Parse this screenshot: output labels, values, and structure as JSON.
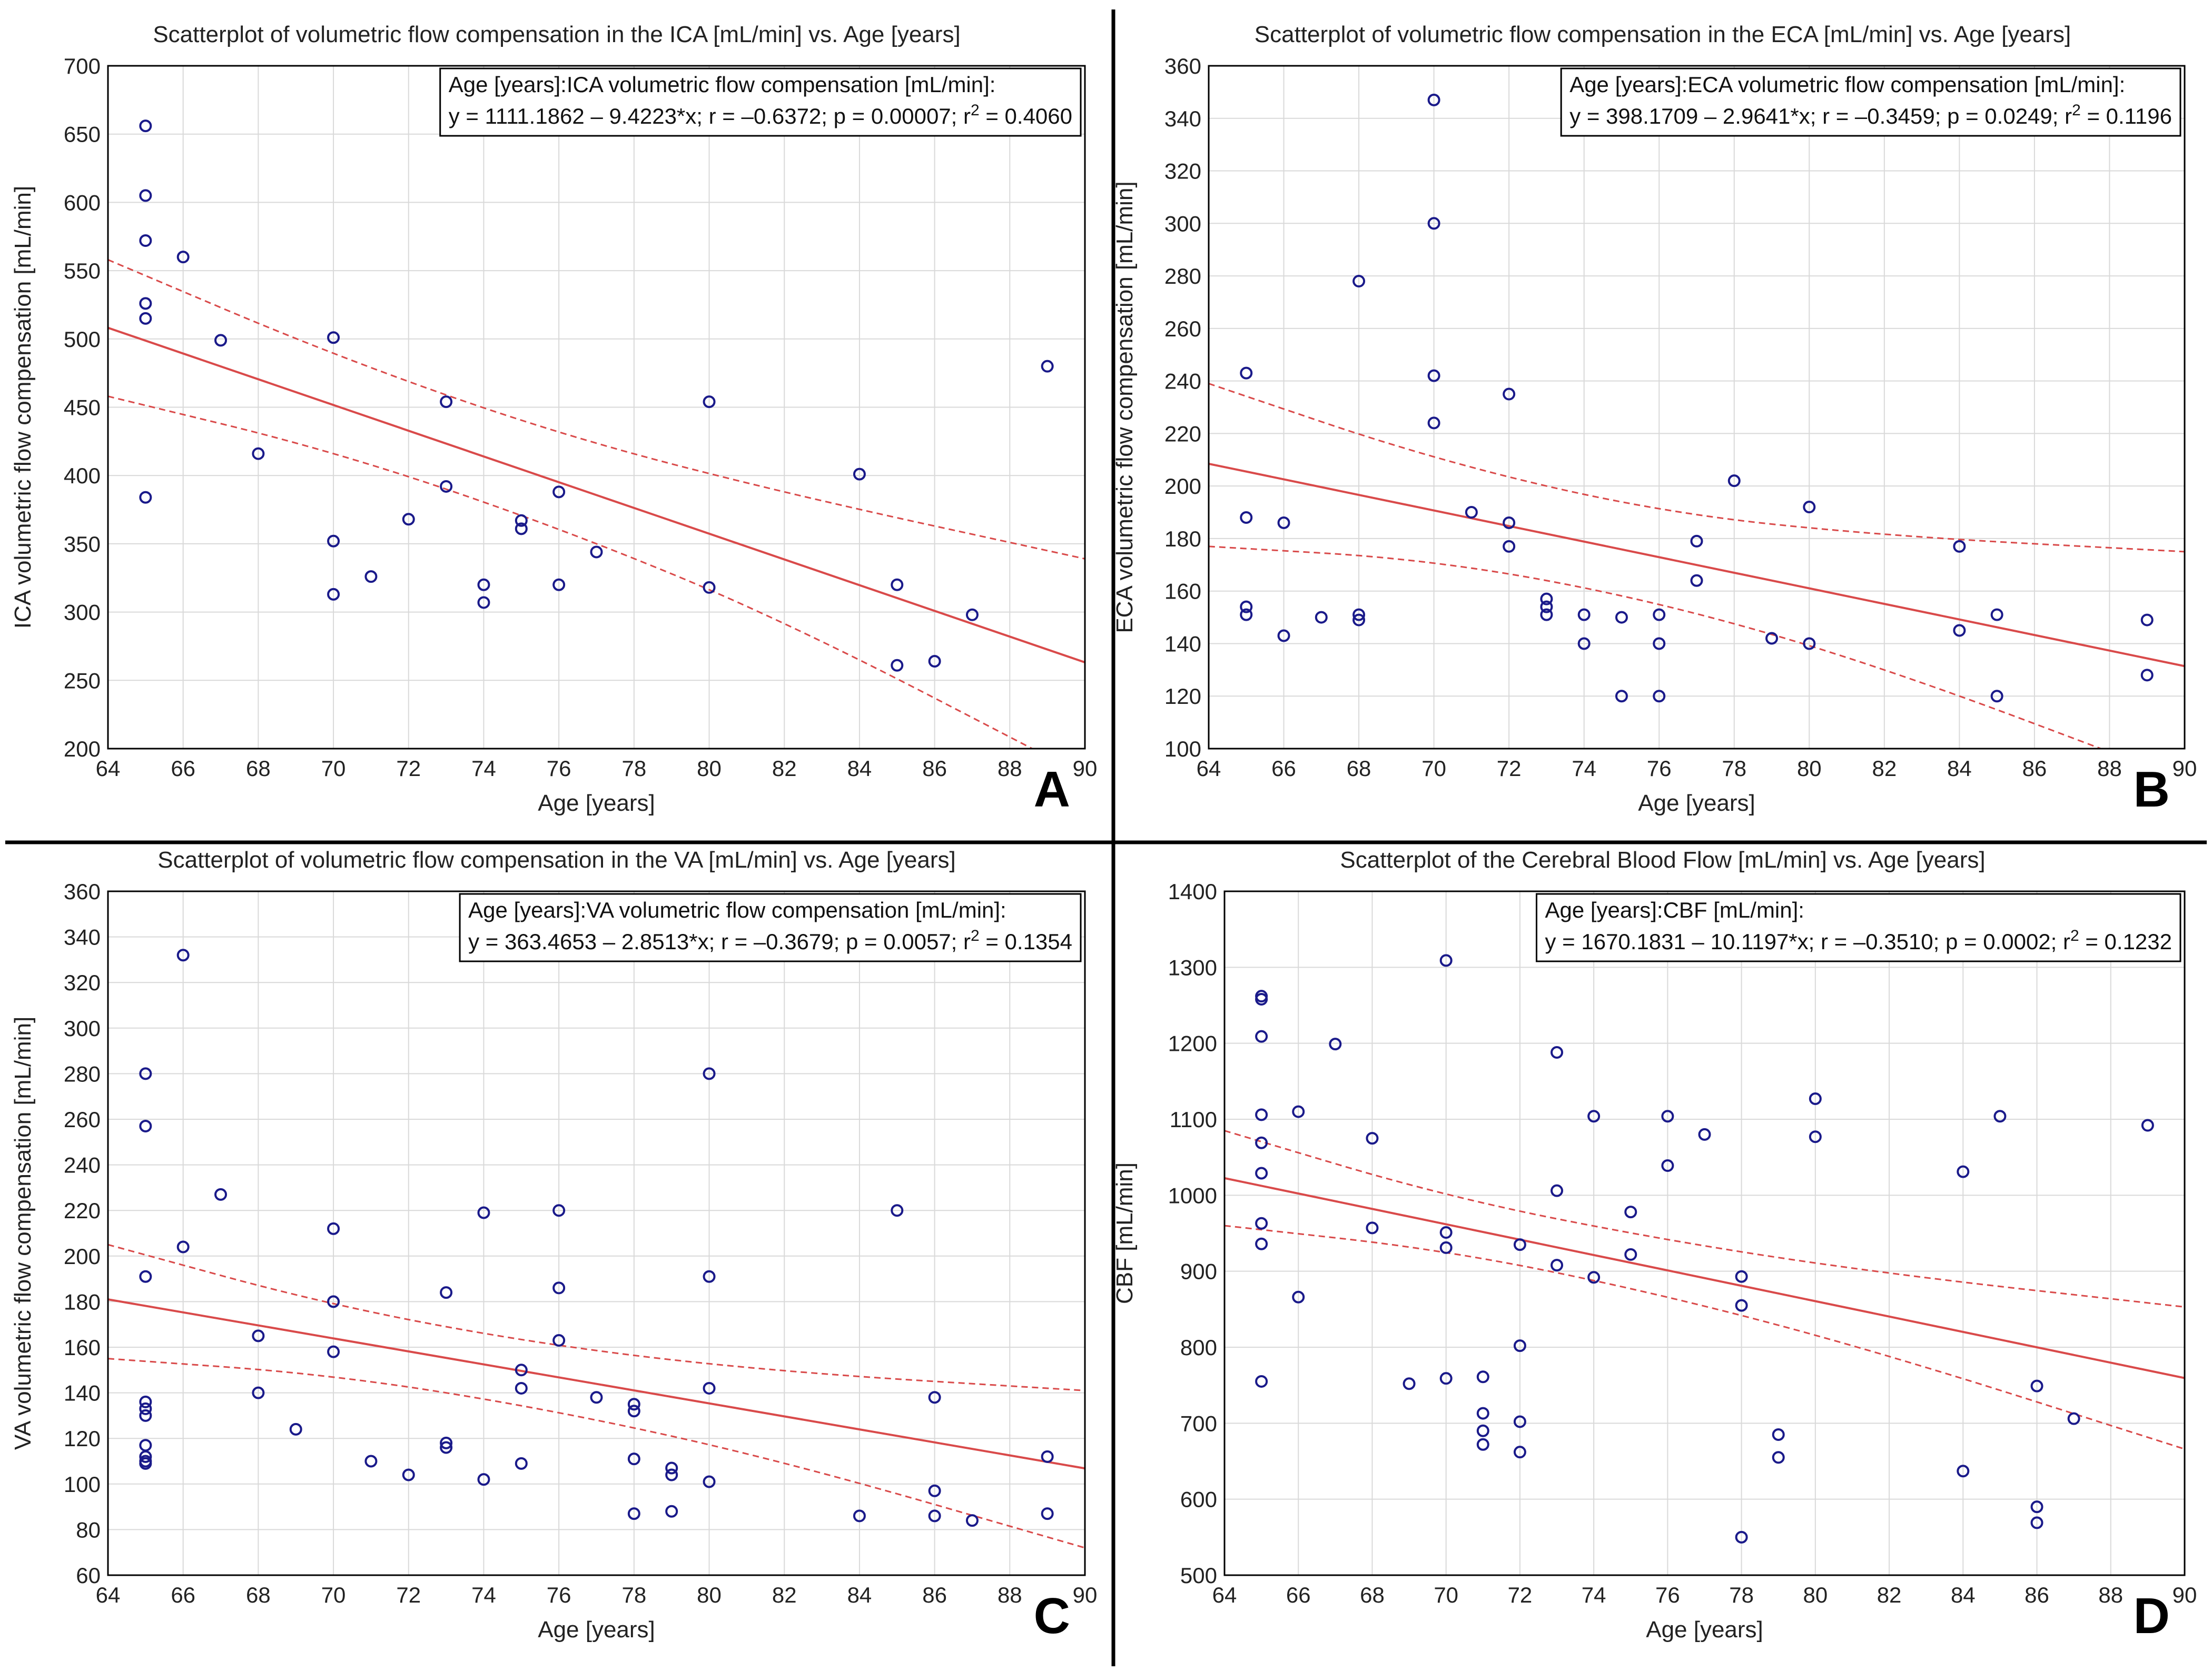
{
  "colors": {
    "point": "#1a1a8a",
    "fit": "#d94a4a",
    "grid": "#d9d9d9",
    "frame": "#000000",
    "divider": "#000000"
  },
  "chart_data": [
    {
      "id": "A",
      "type": "scatter",
      "panel_label": "A",
      "title": "Scatterplot of volumetric flow compensation in the ICA [mL/min] vs. Age [years]",
      "xlabel": "Age [years]",
      "ylabel": "ICA volumetric flow compensation [mL/min]",
      "xlim": [
        64,
        90
      ],
      "ylim": [
        200,
        700
      ],
      "xticks": [
        64,
        66,
        68,
        70,
        72,
        74,
        76,
        78,
        80,
        82,
        84,
        86,
        88,
        90
      ],
      "yticks": [
        200,
        250,
        300,
        350,
        400,
        450,
        500,
        550,
        600,
        650,
        700
      ],
      "annotation": {
        "line1": "Age [years]:ICA volumetric flow compensation [mL/min]:",
        "line2": "y = 1111.1862 – 9.4223*x; r = –0.6372; p = 0.00007; r",
        "sup": "2",
        "line2b": " = 0.4060"
      },
      "fit": {
        "intercept": 1111.1862,
        "slope": -9.4223
      },
      "ci_upper": [
        [
          64,
          558
        ],
        [
          70,
          488
        ],
        [
          76,
          430
        ],
        [
          82,
          387
        ],
        [
          90,
          339
        ]
      ],
      "ci_lower": [
        [
          64,
          458
        ],
        [
          70,
          418
        ],
        [
          76,
          362
        ],
        [
          82,
          294
        ],
        [
          90,
          180
        ]
      ],
      "points": [
        [
          65,
          656
        ],
        [
          65,
          605
        ],
        [
          65,
          572
        ],
        [
          65,
          526
        ],
        [
          65,
          515
        ],
        [
          65,
          384
        ],
        [
          66,
          560
        ],
        [
          67,
          499
        ],
        [
          68,
          416
        ],
        [
          70,
          501
        ],
        [
          70,
          352
        ],
        [
          70,
          313
        ],
        [
          71,
          326
        ],
        [
          72,
          368
        ],
        [
          73,
          454
        ],
        [
          73,
          392
        ],
        [
          74,
          320
        ],
        [
          74,
          307
        ],
        [
          75,
          367
        ],
        [
          75,
          361
        ],
        [
          76,
          388
        ],
        [
          76,
          320
        ],
        [
          77,
          344
        ],
        [
          80,
          454
        ],
        [
          80,
          318
        ],
        [
          84,
          401
        ],
        [
          85,
          320
        ],
        [
          85,
          261
        ],
        [
          86,
          264
        ],
        [
          87,
          298
        ],
        [
          89,
          480
        ]
      ]
    },
    {
      "id": "B",
      "type": "scatter",
      "panel_label": "B",
      "title": "Scatterplot of volumetric flow compensation in the ECA [mL/min] vs. Age [years]",
      "xlabel": "Age [years]",
      "ylabel": "ECA volumetric flow compensation [mL/min]",
      "xlim": [
        64,
        90
      ],
      "ylim": [
        100,
        360
      ],
      "xticks": [
        64,
        66,
        68,
        70,
        72,
        74,
        76,
        78,
        80,
        82,
        84,
        86,
        88,
        90
      ],
      "yticks": [
        100,
        120,
        140,
        160,
        180,
        200,
        220,
        240,
        260,
        280,
        300,
        320,
        340,
        360
      ],
      "annotation": {
        "line1": "Age [years]:ECA volumetric flow compensation [mL/min]:",
        "line2": "y = 398.1709 – 2.9641*x; r = –0.3459; p = 0.0249; r",
        "sup": "2",
        "line2b": " = 0.1196"
      },
      "fit": {
        "intercept": 398.1709,
        "slope": -2.9641
      },
      "ci_upper": [
        [
          64,
          239
        ],
        [
          70,
          210
        ],
        [
          76,
          190
        ],
        [
          82,
          181
        ],
        [
          90,
          175
        ]
      ],
      "ci_lower": [
        [
          64,
          177
        ],
        [
          70,
          172
        ],
        [
          76,
          156
        ],
        [
          82,
          131
        ],
        [
          90,
          88
        ]
      ],
      "points": [
        [
          65,
          243
        ],
        [
          65,
          188
        ],
        [
          65,
          154
        ],
        [
          65,
          151
        ],
        [
          66,
          186
        ],
        [
          66,
          143
        ],
        [
          67,
          150
        ],
        [
          68,
          278
        ],
        [
          68,
          151
        ],
        [
          68,
          149
        ],
        [
          70,
          347
        ],
        [
          70,
          300
        ],
        [
          70,
          242
        ],
        [
          70,
          224
        ],
        [
          71,
          190
        ],
        [
          72,
          235
        ],
        [
          72,
          186
        ],
        [
          72,
          177
        ],
        [
          73,
          157
        ],
        [
          73,
          154
        ],
        [
          73,
          151
        ],
        [
          74,
          151
        ],
        [
          74,
          140
        ],
        [
          75,
          150
        ],
        [
          75,
          120
        ],
        [
          76,
          151
        ],
        [
          76,
          140
        ],
        [
          76,
          120
        ],
        [
          77,
          179
        ],
        [
          77,
          164
        ],
        [
          78,
          202
        ],
        [
          79,
          142
        ],
        [
          80,
          192
        ],
        [
          80,
          140
        ],
        [
          84,
          177
        ],
        [
          84,
          145
        ],
        [
          85,
          151
        ],
        [
          85,
          120
        ],
        [
          89,
          149
        ],
        [
          89,
          128
        ]
      ]
    },
    {
      "id": "C",
      "type": "scatter",
      "panel_label": "C",
      "title": "Scatterplot of volumetric flow compensation in the VA [mL/min] vs. Age [years]",
      "xlabel": "Age [years]",
      "ylabel": "VA volumetric flow compensation [mL/min]",
      "xlim": [
        64,
        90
      ],
      "ylim": [
        60,
        360
      ],
      "xticks": [
        64,
        66,
        68,
        70,
        72,
        74,
        76,
        78,
        80,
        82,
        84,
        86,
        88,
        90
      ],
      "yticks": [
        60,
        80,
        100,
        120,
        140,
        160,
        180,
        200,
        220,
        240,
        260,
        280,
        300,
        320,
        340,
        360
      ],
      "annotation": {
        "line1": "Age [years]:VA volumetric flow compensation [mL/min]:",
        "line2": "y = 363.4653 – 2.8513*x; r = –0.3679; p = 0.0057; r",
        "sup": "2",
        "line2b": " = 0.1354"
      },
      "fit": {
        "intercept": 363.4653,
        "slope": -2.8513
      },
      "ci_upper": [
        [
          64,
          205
        ],
        [
          70,
          178
        ],
        [
          76,
          160
        ],
        [
          82,
          149
        ],
        [
          90,
          141
        ]
      ],
      "ci_lower": [
        [
          64,
          155
        ],
        [
          70,
          148
        ],
        [
          76,
          132
        ],
        [
          82,
          110
        ],
        [
          90,
          72
        ]
      ],
      "points": [
        [
          65,
          280
        ],
        [
          65,
          257
        ],
        [
          65,
          191
        ],
        [
          65,
          136
        ],
        [
          65,
          133
        ],
        [
          65,
          130
        ],
        [
          65,
          117
        ],
        [
          65,
          112
        ],
        [
          65,
          110
        ],
        [
          65,
          109
        ],
        [
          66,
          332
        ],
        [
          66,
          204
        ],
        [
          67,
          227
        ],
        [
          68,
          165
        ],
        [
          68,
          140
        ],
        [
          69,
          124
        ],
        [
          70,
          212
        ],
        [
          70,
          180
        ],
        [
          70,
          158
        ],
        [
          71,
          110
        ],
        [
          72,
          104
        ],
        [
          73,
          184
        ],
        [
          73,
          118
        ],
        [
          73,
          116
        ],
        [
          74,
          219
        ],
        [
          74,
          102
        ],
        [
          75,
          150
        ],
        [
          75,
          142
        ],
        [
          75,
          109
        ],
        [
          76,
          220
        ],
        [
          76,
          186
        ],
        [
          76,
          163
        ],
        [
          77,
          138
        ],
        [
          78,
          135
        ],
        [
          78,
          132
        ],
        [
          78,
          111
        ],
        [
          78,
          87
        ],
        [
          79,
          107
        ],
        [
          79,
          104
        ],
        [
          79,
          88
        ],
        [
          80,
          280
        ],
        [
          80,
          191
        ],
        [
          80,
          142
        ],
        [
          80,
          101
        ],
        [
          84,
          86
        ],
        [
          85,
          220
        ],
        [
          86,
          138
        ],
        [
          86,
          97
        ],
        [
          86,
          86
        ],
        [
          87,
          84
        ],
        [
          89,
          112
        ],
        [
          89,
          87
        ]
      ]
    },
    {
      "id": "D",
      "type": "scatter",
      "panel_label": "D",
      "title": "Scatterplot of the Cerebral Blood Flow [mL/min] vs. Age [years]",
      "xlabel": "Age [years]",
      "ylabel": "CBF [mL/min]",
      "xlim": [
        64,
        90
      ],
      "ylim": [
        500,
        1400
      ],
      "xticks": [
        64,
        66,
        68,
        70,
        72,
        74,
        76,
        78,
        80,
        82,
        84,
        86,
        88,
        90
      ],
      "yticks": [
        500,
        600,
        700,
        800,
        900,
        1000,
        1100,
        1200,
        1300,
        1400
      ],
      "annotation": {
        "line1": "Age [years]:CBF [mL/min]:",
        "line2": "y = 1670.1831 – 10.1197*x; r = –0.3510; p = 0.0002; r",
        "sup": "2",
        "line2b": " = 0.1232"
      },
      "fit": {
        "intercept": 1670.1831,
        "slope": -10.1197
      },
      "ci_upper": [
        [
          64,
          1085
        ],
        [
          70,
          998
        ],
        [
          76,
          940
        ],
        [
          82,
          896
        ],
        [
          90,
          853
        ]
      ],
      "ci_lower": [
        [
          64,
          960
        ],
        [
          70,
          928
        ],
        [
          76,
          868
        ],
        [
          82,
          790
        ],
        [
          90,
          666
        ]
      ],
      "points": [
        [
          65,
          1262
        ],
        [
          65,
          1258
        ],
        [
          65,
          1209
        ],
        [
          65,
          1106
        ],
        [
          65,
          1069
        ],
        [
          65,
          1029
        ],
        [
          65,
          963
        ],
        [
          65,
          936
        ],
        [
          65,
          755
        ],
        [
          66,
          1110
        ],
        [
          66,
          866
        ],
        [
          67,
          1199
        ],
        [
          68,
          1075
        ],
        [
          68,
          957
        ],
        [
          69,
          752
        ],
        [
          70,
          1309
        ],
        [
          70,
          951
        ],
        [
          70,
          931
        ],
        [
          70,
          759
        ],
        [
          71,
          761
        ],
        [
          71,
          713
        ],
        [
          71,
          690
        ],
        [
          71,
          672
        ],
        [
          72,
          935
        ],
        [
          72,
          802
        ],
        [
          72,
          702
        ],
        [
          72,
          662
        ],
        [
          73,
          1188
        ],
        [
          73,
          1006
        ],
        [
          73,
          908
        ],
        [
          74,
          1104
        ],
        [
          74,
          892
        ],
        [
          75,
          978
        ],
        [
          75,
          922
        ],
        [
          76,
          1104
        ],
        [
          76,
          1039
        ],
        [
          77,
          1080
        ],
        [
          78,
          893
        ],
        [
          78,
          855
        ],
        [
          78,
          550
        ],
        [
          79,
          685
        ],
        [
          79,
          655
        ],
        [
          80,
          1127
        ],
        [
          80,
          1077
        ],
        [
          84,
          1031
        ],
        [
          84,
          637
        ],
        [
          85,
          1104
        ],
        [
          86,
          749
        ],
        [
          86,
          590
        ],
        [
          86,
          569
        ],
        [
          87,
          706
        ],
        [
          89,
          1092
        ]
      ]
    }
  ]
}
